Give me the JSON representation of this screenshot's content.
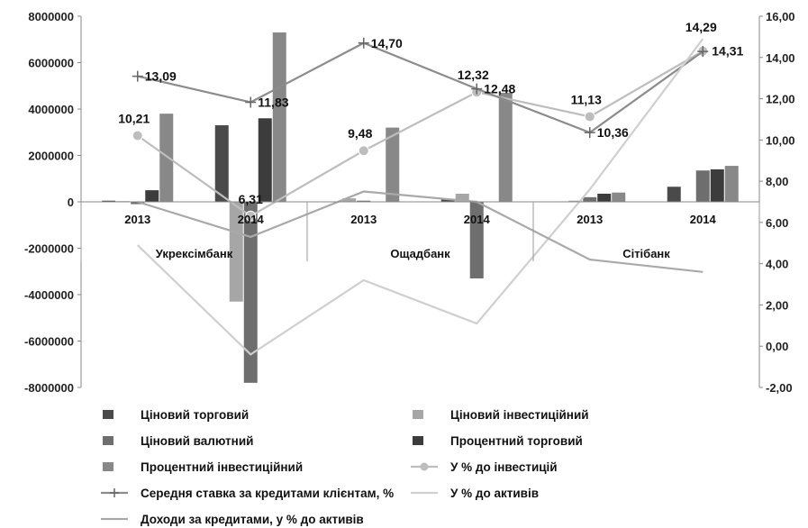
{
  "chart_data": {
    "type": "bar",
    "groups": [
      {
        "label": "Укрексімбанк",
        "years": [
          "2013",
          "2014"
        ]
      },
      {
        "label": "Ощадбанк",
        "years": [
          "2013",
          "2014"
        ]
      },
      {
        "label": "Сітібанк",
        "years": [
          "2013",
          "2014"
        ]
      }
    ],
    "categories": [
      "2013",
      "2014",
      "2013",
      "2014",
      "2013",
      "2014"
    ],
    "y_left": {
      "ylim": [
        -8000000,
        8000000
      ],
      "ticks": [
        "-8000000",
        "-6000000",
        "-4000000",
        "-2000000",
        "0",
        "2000000",
        "4000000",
        "6000000",
        "8000000"
      ]
    },
    "y_right": {
      "ylim": [
        -2,
        16
      ],
      "ticks": [
        "-2,00",
        "0,00",
        "2,00",
        "4,00",
        "6,00",
        "8,00",
        "10,00",
        "12,00",
        "14,00",
        "16,00"
      ]
    },
    "series": [
      {
        "name": "Ціновий торговий",
        "kind": "bar",
        "color": "#4a4a4a",
        "values": [
          50000,
          3300000,
          0,
          100000,
          20000,
          650000
        ]
      },
      {
        "name": "Ціновий інвестиційний",
        "kind": "bar",
        "color": "#a6a6a6",
        "values": [
          30000,
          -4300000,
          150000,
          350000,
          50000,
          0
        ]
      },
      {
        "name": "Ціновий валютний",
        "kind": "bar",
        "color": "#6e6e6e",
        "values": [
          -100000,
          -7800000,
          50000,
          -3300000,
          200000,
          1350000
        ]
      },
      {
        "name": "Процентний торговий",
        "kind": "bar",
        "color": "#3c3c3c",
        "values": [
          500000,
          3600000,
          0,
          0,
          350000,
          1400000
        ]
      },
      {
        "name": "Процентний інвестиційний",
        "kind": "bar",
        "color": "#888888",
        "values": [
          3800000,
          7300000,
          3200000,
          4700000,
          400000,
          1550000
        ]
      },
      {
        "name": "У % до інвестицій",
        "kind": "line",
        "axis": "right",
        "color": "#bdbdbd",
        "marker": "circle",
        "values": [
          10.21,
          6.31,
          9.48,
          12.32,
          11.13,
          14.31
        ],
        "labels": [
          "10,21",
          "6,31",
          "9,48",
          "12,32",
          "11,13",
          "14,31"
        ]
      },
      {
        "name": "Середня ставка за кредитами клієнтам, %",
        "kind": "line",
        "axis": "right",
        "color": "#8c8c8c",
        "marker": "plus",
        "values": [
          13.09,
          11.83,
          14.7,
          12.48,
          10.36,
          14.29
        ],
        "labels": [
          "13,09",
          "11,83",
          "14,70",
          "12,48",
          "10,36",
          "14,29"
        ]
      },
      {
        "name": "У % до активів",
        "kind": "line",
        "axis": "right",
        "color": "#cfcfcf",
        "marker": "none",
        "values": [
          4.9,
          -0.4,
          3.2,
          1.1,
          7.6,
          14.9
        ]
      },
      {
        "name": "Доходи за кредитами, у % до активів",
        "kind": "line",
        "axis": "right",
        "color": "#a9a9a9",
        "marker": "none",
        "values": [
          7.0,
          5.3,
          7.5,
          7.0,
          4.2,
          3.6
        ]
      }
    ]
  }
}
